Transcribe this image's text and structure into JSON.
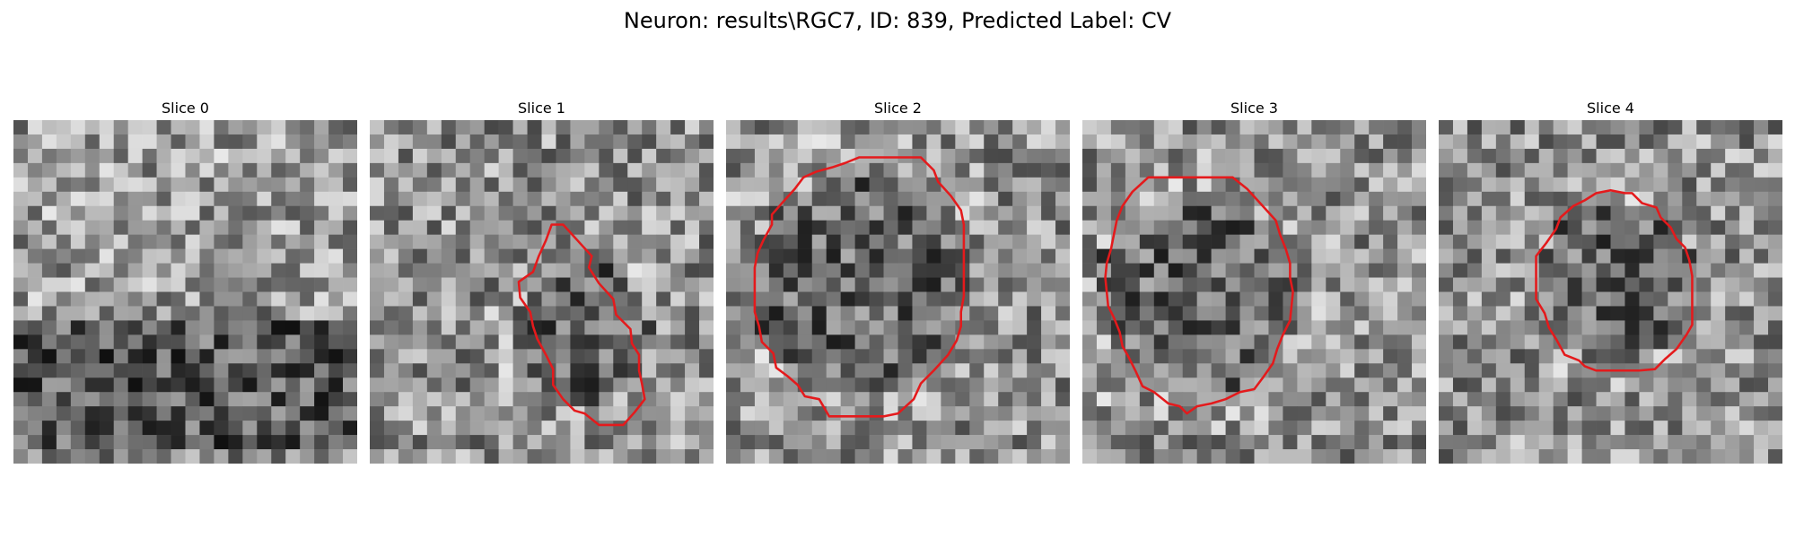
{
  "figure": {
    "title": "Neuron: results\\RGC7, ID: 839, Predicted Label: CV",
    "panels": [
      {
        "label": "Slice 0",
        "seed": 11,
        "contour": []
      },
      {
        "label": "Slice 1",
        "seed": 23,
        "contour": [
          [
            12.7,
            7.3
          ],
          [
            13.5,
            7.3
          ],
          [
            14.5,
            8.4
          ],
          [
            15.5,
            9.5
          ],
          [
            15.3,
            10.3
          ],
          [
            16.0,
            11.4
          ],
          [
            17.0,
            12.5
          ],
          [
            17.2,
            13.6
          ],
          [
            18.2,
            14.6
          ],
          [
            18.3,
            15.6
          ],
          [
            18.8,
            16.4
          ],
          [
            18.8,
            17.5
          ],
          [
            19.0,
            18.4
          ],
          [
            19.2,
            19.5
          ],
          [
            18.5,
            20.4
          ],
          [
            17.7,
            21.3
          ],
          [
            17.0,
            21.3
          ],
          [
            16.0,
            21.3
          ],
          [
            15.0,
            20.5
          ],
          [
            14.3,
            20.3
          ],
          [
            13.5,
            19.5
          ],
          [
            12.8,
            18.5
          ],
          [
            12.8,
            17.4
          ],
          [
            12.3,
            16.4
          ],
          [
            11.7,
            15.3
          ],
          [
            11.4,
            14.4
          ],
          [
            11.2,
            13.4
          ],
          [
            10.5,
            12.4
          ],
          [
            10.4,
            11.3
          ],
          [
            11.4,
            10.6
          ],
          [
            11.8,
            9.5
          ],
          [
            12.3,
            8.4
          ]
        ]
      },
      {
        "label": "Slice 2",
        "seed": 37,
        "contour": [
          [
            10.2,
            2.6
          ],
          [
            13.6,
            2.6
          ],
          [
            14.5,
            3.5
          ],
          [
            14.8,
            4.3
          ],
          [
            15.7,
            5.3
          ],
          [
            16.4,
            6.3
          ],
          [
            16.6,
            7.3
          ],
          [
            16.6,
            8.4
          ],
          [
            16.6,
            9.4
          ],
          [
            16.6,
            10.3
          ],
          [
            16.6,
            11.4
          ],
          [
            16.6,
            12.3
          ],
          [
            16.4,
            13.4
          ],
          [
            16.4,
            14.4
          ],
          [
            16.1,
            15.4
          ],
          [
            15.5,
            16.4
          ],
          [
            14.5,
            17.5
          ],
          [
            13.6,
            18.4
          ],
          [
            13.1,
            19.5
          ],
          [
            12.0,
            20.5
          ],
          [
            11.0,
            20.7
          ],
          [
            9.8,
            20.7
          ],
          [
            8.5,
            20.7
          ],
          [
            7.2,
            20.7
          ],
          [
            6.5,
            19.5
          ],
          [
            5.5,
            19.3
          ],
          [
            5.0,
            18.5
          ],
          [
            4.3,
            17.9
          ],
          [
            3.5,
            17.3
          ],
          [
            3.3,
            16.3
          ],
          [
            2.5,
            15.5
          ],
          [
            2.3,
            14.4
          ],
          [
            2.0,
            13.4
          ],
          [
            2.0,
            12.3
          ],
          [
            2.0,
            11.3
          ],
          [
            2.0,
            10.3
          ],
          [
            2.2,
            9.3
          ],
          [
            2.6,
            8.4
          ],
          [
            3.2,
            7.3
          ],
          [
            3.2,
            6.6
          ],
          [
            3.9,
            5.8
          ],
          [
            4.8,
            4.8
          ],
          [
            5.4,
            4.0
          ],
          [
            6.3,
            3.6
          ],
          [
            7.4,
            3.3
          ],
          [
            8.3,
            3.0
          ],
          [
            9.3,
            2.6
          ]
        ]
      },
      {
        "label": "Slice 3",
        "seed": 53,
        "contour": [
          [
            9.4,
            4.0
          ],
          [
            10.5,
            4.0
          ],
          [
            11.5,
            4.8
          ],
          [
            12.5,
            5.9
          ],
          [
            13.5,
            7.0
          ],
          [
            13.8,
            8.0
          ],
          [
            14.2,
            9.0
          ],
          [
            14.5,
            10.0
          ],
          [
            14.5,
            11.0
          ],
          [
            14.7,
            12.0
          ],
          [
            14.6,
            13.0
          ],
          [
            14.5,
            14.0
          ],
          [
            14.0,
            15.0
          ],
          [
            13.6,
            16.0
          ],
          [
            13.3,
            17.0
          ],
          [
            12.6,
            18.0
          ],
          [
            12.0,
            18.8
          ],
          [
            11.0,
            19.0
          ],
          [
            10.0,
            19.5
          ],
          [
            9.0,
            19.8
          ],
          [
            8.0,
            20.0
          ],
          [
            7.3,
            20.5
          ],
          [
            6.8,
            20.0
          ],
          [
            6.0,
            19.8
          ],
          [
            5.0,
            19.0
          ],
          [
            4.2,
            18.6
          ],
          [
            3.7,
            17.5
          ],
          [
            3.2,
            16.5
          ],
          [
            2.8,
            15.8
          ],
          [
            2.6,
            14.8
          ],
          [
            2.2,
            13.8
          ],
          [
            1.8,
            13.0
          ],
          [
            1.7,
            12.0
          ],
          [
            1.6,
            11.0
          ],
          [
            1.7,
            10.0
          ],
          [
            2.0,
            9.0
          ],
          [
            2.2,
            8.0
          ],
          [
            2.4,
            7.0
          ],
          [
            2.8,
            6.0
          ],
          [
            3.5,
            5.0
          ],
          [
            4.6,
            4.0
          ],
          [
            5.5,
            4.0
          ],
          [
            6.5,
            4.0
          ],
          [
            7.5,
            4.0
          ],
          [
            8.5,
            4.0
          ]
        ]
      },
      {
        "label": "Slice 4",
        "seed": 71,
        "contour": [
          [
            13.0,
            5.1
          ],
          [
            13.5,
            5.1
          ],
          [
            14.2,
            5.8
          ],
          [
            15.2,
            6.1
          ],
          [
            15.5,
            6.8
          ],
          [
            16.2,
            7.5
          ],
          [
            16.6,
            8.3
          ],
          [
            17.2,
            8.9
          ],
          [
            17.5,
            9.8
          ],
          [
            17.7,
            10.9
          ],
          [
            17.7,
            12.0
          ],
          [
            17.7,
            13.3
          ],
          [
            17.7,
            14.3
          ],
          [
            17.3,
            15.0
          ],
          [
            16.6,
            16.0
          ],
          [
            15.8,
            16.7
          ],
          [
            15.1,
            17.4
          ],
          [
            14.0,
            17.5
          ],
          [
            13.0,
            17.5
          ],
          [
            12.0,
            17.5
          ],
          [
            11.0,
            17.5
          ],
          [
            10.2,
            17.2
          ],
          [
            9.8,
            16.8
          ],
          [
            8.8,
            16.4
          ],
          [
            8.2,
            15.3
          ],
          [
            7.7,
            14.5
          ],
          [
            7.4,
            13.5
          ],
          [
            6.8,
            12.5
          ],
          [
            6.8,
            11.5
          ],
          [
            6.8,
            10.5
          ],
          [
            6.8,
            9.5
          ],
          [
            7.5,
            8.6
          ],
          [
            8.2,
            7.6
          ],
          [
            8.5,
            6.8
          ],
          [
            9.4,
            6.0
          ],
          [
            10.2,
            5.6
          ],
          [
            11.0,
            5.1
          ],
          [
            12.0,
            4.9
          ]
        ]
      }
    ]
  },
  "colors": {
    "contour": "#e41a1c"
  }
}
